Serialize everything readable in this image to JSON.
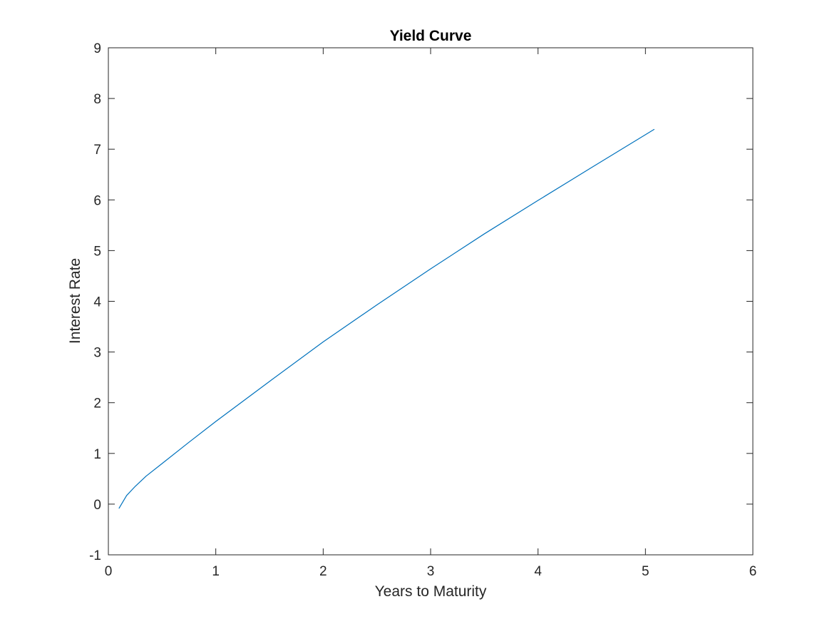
{
  "chart_data": {
    "type": "line",
    "title": "Yield Curve",
    "xlabel": "Years to Maturity",
    "ylabel": "Interest Rate",
    "xlim": [
      0,
      6
    ],
    "ylim": [
      -1,
      9
    ],
    "xticks": [
      0,
      1,
      2,
      3,
      4,
      5,
      6
    ],
    "yticks": [
      -1,
      0,
      1,
      2,
      3,
      4,
      5,
      6,
      7,
      8,
      9
    ],
    "xtick_labels": [
      "0",
      "1",
      "2",
      "3",
      "4",
      "5",
      "6"
    ],
    "ytick_labels": [
      "-1",
      "0",
      "1",
      "2",
      "3",
      "4",
      "5",
      "6",
      "7",
      "8",
      "9"
    ],
    "grid": false,
    "legend": "none",
    "box": true,
    "series": [
      {
        "color": "#0072BD",
        "x": [
          0.1,
          0.17,
          0.25,
          0.35,
          0.5,
          0.75,
          1.0,
          1.5,
          2.0,
          2.5,
          3.0,
          3.5,
          4.0,
          4.5,
          5.08
        ],
        "y": [
          -0.08,
          0.17,
          0.35,
          0.55,
          0.8,
          1.22,
          1.63,
          2.42,
          3.2,
          3.93,
          4.64,
          5.33,
          5.99,
          6.64,
          7.39
        ]
      }
    ]
  }
}
